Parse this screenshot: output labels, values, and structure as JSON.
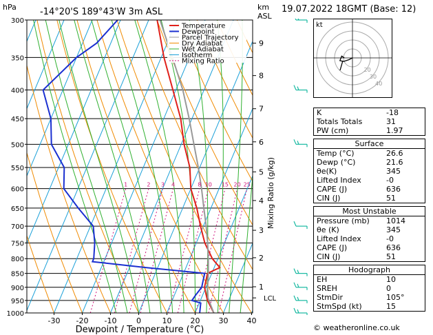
{
  "header": {
    "location": "-14°20'S  189°43'W  3m  ASL",
    "stamp": "19.07.2022  18GMT  (Base: 12)"
  },
  "chart_data": {
    "type": "line",
    "title": "-14°20'S  189°43'W  3m  ASL",
    "xlabel": "Dewpoint / Temperature (°C)",
    "ylabel": "hPa",
    "ylabel_right": "km ASL",
    "mixing_label": "Mixing Ratio (g/kg)",
    "pressure_ticks": [
      300,
      350,
      400,
      450,
      500,
      550,
      600,
      650,
      700,
      750,
      800,
      850,
      900,
      950,
      1000
    ],
    "temp_ticks": [
      -30,
      -20,
      -10,
      0,
      10,
      20,
      30,
      40
    ],
    "km_ticks": [
      {
        "km": "9",
        "p": 330
      },
      {
        "km": "8",
        "p": 377
      },
      {
        "km": "7",
        "p": 432
      },
      {
        "km": "6",
        "p": 495
      },
      {
        "km": "5",
        "p": 560
      },
      {
        "km": "4",
        "p": 630
      },
      {
        "km": "3",
        "p": 712
      },
      {
        "km": "2",
        "p": 797
      },
      {
        "km": "1",
        "p": 898
      }
    ],
    "lcl_label": "LCL",
    "lcl_p": 940,
    "mixing_ratios": [
      "1",
      "2",
      "3",
      "4",
      "8",
      "10",
      "15",
      "20",
      "25"
    ],
    "legend": [
      "Temperature",
      "Dewpoint",
      "Parcel Trajectory",
      "Dry Adiabat",
      "Wet Adiabat",
      "Isotherm",
      "Mixing Ratio"
    ],
    "series": [
      {
        "name": "Temperature",
        "color": "#e0201a",
        "points": [
          [
            1000,
            26.6
          ],
          [
            950,
            22.5
          ],
          [
            925,
            21
          ],
          [
            900,
            19.5
          ],
          [
            850,
            18.5
          ],
          [
            830,
            22
          ],
          [
            800,
            18
          ],
          [
            750,
            13
          ],
          [
            700,
            9
          ],
          [
            650,
            5
          ],
          [
            600,
            0
          ],
          [
            550,
            -3.5
          ],
          [
            500,
            -9
          ],
          [
            450,
            -14
          ],
          [
            400,
            -21
          ],
          [
            350,
            -29
          ],
          [
            300,
            -37
          ]
        ]
      },
      {
        "name": "Dewpoint",
        "color": "#1a2fd0",
        "points": [
          [
            1000,
            21.6
          ],
          [
            960,
            20.5
          ],
          [
            950,
            17
          ],
          [
            930,
            17.5
          ],
          [
            900,
            18.5
          ],
          [
            850,
            17.5
          ],
          [
            830,
            -4
          ],
          [
            810,
            -24
          ],
          [
            800,
            -24
          ],
          [
            750,
            -26
          ],
          [
            700,
            -29
          ],
          [
            650,
            -37
          ],
          [
            600,
            -45
          ],
          [
            550,
            -48
          ],
          [
            500,
            -56
          ],
          [
            450,
            -60
          ],
          [
            400,
            -67
          ],
          [
            350,
            -60
          ],
          [
            330,
            -55
          ],
          [
            300,
            -51
          ]
        ]
      },
      {
        "name": "Parcel Trajectory",
        "color": "#999999",
        "points": [
          [
            1000,
            26.6
          ],
          [
            940,
            22.3
          ],
          [
            900,
            20.6
          ],
          [
            850,
            18.8
          ],
          [
            800,
            16.6
          ],
          [
            750,
            14
          ],
          [
            700,
            11
          ],
          [
            650,
            7.5
          ],
          [
            600,
            3.8
          ],
          [
            550,
            -0.5
          ],
          [
            500,
            -5.5
          ],
          [
            450,
            -11
          ],
          [
            400,
            -17.5
          ],
          [
            350,
            -26
          ],
          [
            300,
            -36
          ]
        ]
      }
    ]
  },
  "hodograph": {
    "label": "kt",
    "rings": [
      "10",
      "20",
      "30",
      "40"
    ],
    "points": [
      [
        0,
        0
      ],
      [
        -4,
        -2
      ],
      [
        -10,
        -4
      ],
      [
        -14,
        -3
      ],
      [
        -12,
        2
      ],
      [
        -9,
        0
      ]
    ]
  },
  "wind_barbs": [
    {
      "p": 300,
      "dir": 300,
      "spd": 20
    },
    {
      "p": 400,
      "dir": 260,
      "spd": 15
    },
    {
      "p": 500,
      "dir": 250,
      "spd": 15
    },
    {
      "p": 700,
      "dir": 100,
      "spd": 10
    },
    {
      "p": 850,
      "dir": 110,
      "spd": 15
    },
    {
      "p": 900,
      "dir": 110,
      "spd": 15
    },
    {
      "p": 950,
      "dir": 105,
      "spd": 15
    },
    {
      "p": 1000,
      "dir": 105,
      "spd": 15
    }
  ],
  "indices": {
    "rows": [
      {
        "k": "K",
        "v": "-18"
      },
      {
        "k": "Totals Totals",
        "v": "31"
      },
      {
        "k": "PW (cm)",
        "v": "1.97"
      }
    ]
  },
  "surface": {
    "title": "Surface",
    "rows": [
      {
        "k": "Temp (°C)",
        "v": "26.6"
      },
      {
        "k": "Dewp (°C)",
        "v": "21.6"
      },
      {
        "k": "θe(K)",
        "v": "345"
      },
      {
        "k": "Lifted Index",
        "v": "-0"
      },
      {
        "k": "CAPE (J)",
        "v": "636"
      },
      {
        "k": "CIN (J)",
        "v": "51"
      }
    ]
  },
  "unstable": {
    "title": "Most Unstable",
    "rows": [
      {
        "k": "Pressure (mb)",
        "v": "1014"
      },
      {
        "k": "θe (K)",
        "v": "345"
      },
      {
        "k": "Lifted Index",
        "v": "-0"
      },
      {
        "k": "CAPE (J)",
        "v": "636"
      },
      {
        "k": "CIN (J)",
        "v": "51"
      }
    ]
  },
  "hodo_box": {
    "title": "Hodograph",
    "rows": [
      {
        "k": "EH",
        "v": "10"
      },
      {
        "k": "SREH",
        "v": "0"
      },
      {
        "k": "StmDir",
        "v": "105°"
      },
      {
        "k": "StmSpd (kt)",
        "v": "15"
      }
    ]
  },
  "credit": "© weatheronline.co.uk",
  "colors": {
    "temp": "#e0201a",
    "dew": "#1a2fd0",
    "parcel": "#999999",
    "dry": "#f08a00",
    "wet": "#2fb02f",
    "isotherm": "#1aa0d8",
    "mixing": "#d0107a",
    "barb": "#15b8a0"
  }
}
